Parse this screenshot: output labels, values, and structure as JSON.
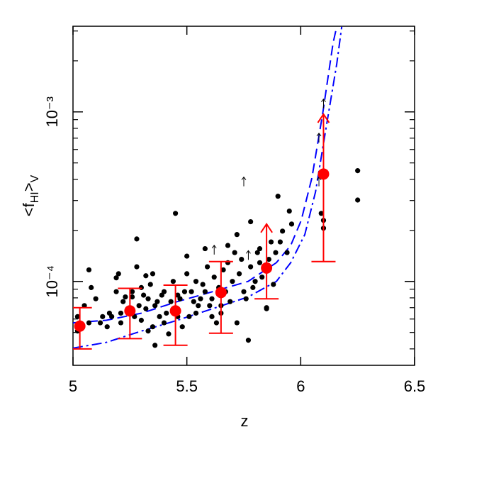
{
  "chart_data": {
    "type": "scatter",
    "xlabel": "z",
    "ylabel_parts": [
      "<f",
      "HI",
      ">",
      "V"
    ],
    "xlim": [
      5,
      6.5
    ],
    "xticks": [
      5,
      5.5,
      6,
      6.5
    ],
    "ylim": [
      3.2e-05,
      0.0032
    ],
    "log_y": true,
    "yticks": [
      {
        "value": 0.0001,
        "label": "10⁻⁴"
      },
      {
        "value": 0.001,
        "label": "10⁻³"
      }
    ],
    "y_minor_ticks": [
      4e-05,
      5e-05,
      6e-05,
      7e-05,
      8e-05,
      9e-05,
      0.0002,
      0.0003,
      0.0004,
      0.0005,
      0.0006,
      0.0007,
      0.0008,
      0.0009,
      0.002,
      0.003
    ],
    "points": {
      "color": "#000000",
      "x": [
        5.02,
        5.02,
        5.05,
        5.07,
        5.07,
        5.08,
        5.1,
        5.12,
        5.13,
        5.15,
        5.16,
        5.17,
        5.19,
        5.19,
        5.21,
        5.21,
        5.22,
        5.23,
        5.24,
        5.26,
        5.26,
        5.27,
        5.28,
        5.29,
        5.3,
        5.3,
        5.31,
        5.32,
        5.33,
        5.33,
        5.34,
        5.35,
        5.35,
        5.36,
        5.37,
        5.38,
        5.39,
        5.4,
        5.4,
        5.41,
        5.42,
        5.43,
        5.44,
        5.45,
        5.45,
        5.46,
        5.46,
        5.47,
        5.48,
        5.49,
        5.5,
        5.5,
        5.51,
        5.52,
        5.53,
        5.54,
        5.54,
        5.55,
        5.56,
        5.57,
        5.58,
        5.58,
        5.59,
        5.6,
        5.61,
        5.61,
        5.62,
        5.63,
        5.64,
        5.65,
        5.65,
        5.66,
        5.67,
        5.68,
        5.68,
        5.69,
        5.7,
        5.71,
        5.72,
        5.72,
        5.73,
        5.74,
        5.75,
        5.76,
        5.77,
        5.78,
        5.78,
        5.79,
        5.8,
        5.81,
        5.82,
        5.82,
        5.83,
        5.85,
        5.86,
        5.86,
        5.87,
        5.88,
        5.89,
        5.9,
        5.91,
        5.92,
        5.94,
        5.95,
        5.96,
        6.09,
        6.1,
        6.1,
        6.25,
        6.25,
        5.28,
        5.2,
        5.32,
        5.85,
        5.36
      ],
      "y": [
        6.2e-05,
        5.1e-05,
        7.2e-05,
        5.7e-05,
        0.000117,
        9.2e-05,
        7.9e-05,
        5.7e-05,
        6.2e-05,
        5.4e-05,
        6.5e-05,
        6.2e-05,
        8.7e-05,
        0.000105,
        6.5e-05,
        5.7e-05,
        7.6e-05,
        8.1e-05,
        6.9e-05,
        8.1e-05,
        8.7e-05,
        6.2e-05,
        0.000122,
        7.2e-05,
        5.9e-05,
        9.2e-05,
        8.3e-05,
        6.9e-05,
        5.1e-05,
        7.9e-05,
        9.6e-05,
        0.000111,
        5.4e-05,
        7.2e-05,
        7.6e-05,
        6.2e-05,
        8.3e-05,
        5.7e-05,
        8.7e-05,
        6.5e-05,
        4.9e-05,
        7.6e-05,
        0.0001,
        6.9e-05,
        0.000252,
        8.3e-05,
        6.2e-05,
        7.9e-05,
        5.4e-05,
        8.7e-05,
        0.000111,
        0.000141,
        6.2e-05,
        8.7e-05,
        7.6e-05,
        0.0001,
        6.5e-05,
        7.2e-05,
        7.9e-05,
        9.6e-05,
        0.000156,
        8.7e-05,
        0.000122,
        7.2e-05,
        6.2e-05,
        7.9e-05,
        0.000106,
        5.7e-05,
        9.2e-05,
        6.5e-05,
        7.2e-05,
        0.000117,
        8.7e-05,
        0.000129,
        0.000163,
        7.6e-05,
        0.0001,
        0.000148,
        0.000189,
        5.7e-05,
        0.000111,
        0.000135,
        8.7e-05,
        7.9e-05,
        4.5e-05,
        0.000122,
        0.000225,
        9.2e-05,
        0.0001,
        0.000148,
        0.000156,
        0.000129,
        0.000106,
        6.9e-05,
        0.000135,
        0.000117,
        0.000171,
        9.6e-05,
        0.000148,
        0.000318,
        0.000171,
        0.000198,
        0.000148,
        0.00026,
        0.000218,
        0.000252,
        0.000229,
        0.000206,
        0.00045,
        0.000302,
        0.000178,
        0.000111,
        0.000108,
        7e-05,
        4.2e-05
      ]
    },
    "limits": {
      "color": "#000000",
      "x": [
        5.62,
        5.75,
        5.77,
        6.08,
        6.08,
        6.1
      ],
      "y": [
        0.000144,
        0.000364,
        0.000134,
        0.000364,
        0.00066,
        0.00105
      ]
    },
    "means": {
      "color": "#ff0000",
      "x": [
        5.03,
        5.25,
        5.45,
        5.65,
        5.85,
        6.1
      ],
      "y": [
        5.45e-05,
        6.7e-05,
        6.7e-05,
        8.6e-05,
        0.00012,
        0.00043
      ],
      "err_low": [
        4e-05,
        4.6e-05,
        4.2e-05,
        4.95e-05,
        7.9e-05,
        0.000131
      ],
      "err_high": [
        7e-05,
        9.1e-05,
        9.5e-05,
        0.000131,
        0.000218,
        0.00097
      ],
      "arrow_up": [
        false,
        false,
        false,
        false,
        true,
        true
      ]
    },
    "curves": [
      {
        "color": "#0000ff",
        "dash": "dashed",
        "x": [
          5.0,
          5.146,
          5.302,
          5.458,
          5.613,
          5.769,
          5.893,
          5.956,
          6.002,
          6.049,
          6.096,
          6.142,
          6.158
        ],
        "y": [
          5.7e-05,
          5.9e-05,
          6.5e-05,
          7.6e-05,
          8.7e-05,
          0.0001,
          0.000129,
          0.000163,
          0.000229,
          0.000408,
          0.00097,
          0.00255,
          0.00318
        ]
      },
      {
        "color": "#0000ff",
        "dash": "dashdot",
        "x": [
          5.0,
          5.146,
          5.302,
          5.458,
          5.613,
          5.769,
          5.893,
          5.956,
          6.018,
          6.065,
          6.111,
          6.158,
          6.18
        ],
        "y": [
          4.04e-05,
          4.37e-05,
          5.1e-05,
          5.9e-05,
          6.9e-05,
          8.1e-05,
          0.0001,
          0.000129,
          0.000189,
          0.000337,
          0.0008,
          0.00191,
          0.00318
        ]
      }
    ]
  }
}
